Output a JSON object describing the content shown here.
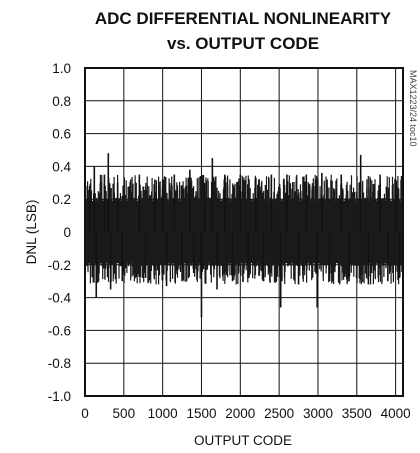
{
  "chart_data": {
    "type": "line",
    "title_line1": "ADC DIFFERENTIAL NONLINEARITY",
    "title_line2": "vs. OUTPUT CODE",
    "xlabel": "OUTPUT CODE",
    "ylabel": "DNL (LSB)",
    "figure_code": "MAX1223/24 toc10",
    "xlim": [
      0,
      4095
    ],
    "ylim": [
      -1.0,
      1.0
    ],
    "grid": true,
    "x_ticks": [
      0,
      500,
      1000,
      1500,
      2000,
      2500,
      3000,
      3500,
      4000
    ],
    "x_tick_labels": [
      "0",
      "500",
      "1000",
      "1500",
      "2000",
      "2500",
      "3000",
      "3500",
      "4000"
    ],
    "y_ticks": [
      1.0,
      0.8,
      0.6,
      0.4,
      0.2,
      0,
      -0.2,
      -0.4,
      -0.6,
      -0.8,
      -1.0
    ],
    "y_tick_labels": [
      "1.0",
      "0.8",
      "0.6",
      "0.4",
      "0.2",
      "0",
      "-0.2",
      "-0.4",
      "-0.6",
      "-0.8",
      "-1.0"
    ],
    "series": [
      {
        "description": "DNL per output code (approximately ±0.2 LSB band with spikes)",
        "band": [
          -0.2,
          0.2
        ],
        "peak_events": [
          {
            "x": 60,
            "y": 0.28
          },
          {
            "x": 120,
            "y": 0.4
          },
          {
            "x": 145,
            "y": -0.4
          },
          {
            "x": 250,
            "y": 0.35
          },
          {
            "x": 300,
            "y": 0.48
          },
          {
            "x": 330,
            "y": -0.35
          },
          {
            "x": 420,
            "y": 0.3
          },
          {
            "x": 480,
            "y": -0.3
          },
          {
            "x": 700,
            "y": 0.35
          },
          {
            "x": 780,
            "y": -0.28
          },
          {
            "x": 900,
            "y": 0.32
          },
          {
            "x": 1000,
            "y": 0.32
          },
          {
            "x": 1050,
            "y": -0.33
          },
          {
            "x": 1150,
            "y": 0.35
          },
          {
            "x": 1250,
            "y": -0.3
          },
          {
            "x": 1350,
            "y": 0.38
          },
          {
            "x": 1400,
            "y": -0.25
          },
          {
            "x": 1500,
            "y": -0.52
          },
          {
            "x": 1540,
            "y": 0.3
          },
          {
            "x": 1640,
            "y": 0.45
          },
          {
            "x": 1700,
            "y": -0.35
          },
          {
            "x": 1800,
            "y": 0.35
          },
          {
            "x": 1900,
            "y": -0.3
          },
          {
            "x": 2000,
            "y": 0.35
          },
          {
            "x": 2100,
            "y": -0.28
          },
          {
            "x": 2200,
            "y": 0.33
          },
          {
            "x": 2300,
            "y": -0.3
          },
          {
            "x": 2400,
            "y": 0.35
          },
          {
            "x": 2520,
            "y": -0.46
          },
          {
            "x": 2600,
            "y": 0.35
          },
          {
            "x": 2750,
            "y": -0.32
          },
          {
            "x": 2850,
            "y": 0.35
          },
          {
            "x": 2990,
            "y": -0.46
          },
          {
            "x": 3050,
            "y": 0.36
          },
          {
            "x": 3150,
            "y": -0.3
          },
          {
            "x": 3300,
            "y": 0.35
          },
          {
            "x": 3400,
            "y": -0.3
          },
          {
            "x": 3550,
            "y": 0.47
          },
          {
            "x": 3650,
            "y": -0.32
          },
          {
            "x": 3800,
            "y": 0.35
          },
          {
            "x": 3900,
            "y": -0.3
          },
          {
            "x": 4000,
            "y": 0.32
          },
          {
            "x": 4050,
            "y": -0.28
          }
        ]
      }
    ]
  }
}
